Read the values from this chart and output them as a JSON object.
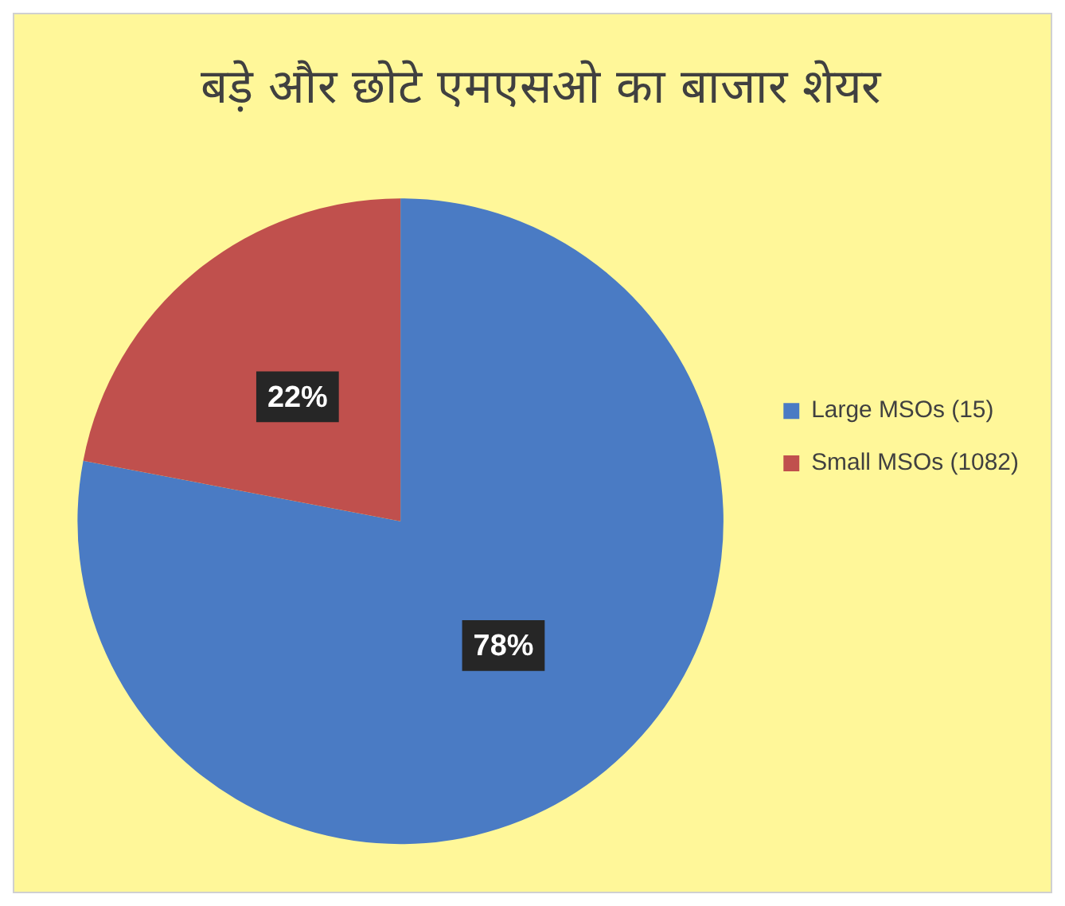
{
  "chart_data": {
    "type": "pie",
    "title": "बड़े और छोटे एमएसओ का बाजार शेयर",
    "categories": [
      "Large MSOs (15)",
      "Small MSOs (1082)"
    ],
    "values": [
      78,
      22
    ],
    "colors": [
      "#4a7bc4",
      "#c0504d"
    ],
    "value_labels": [
      "78%",
      "22%"
    ],
    "legend": "right"
  }
}
